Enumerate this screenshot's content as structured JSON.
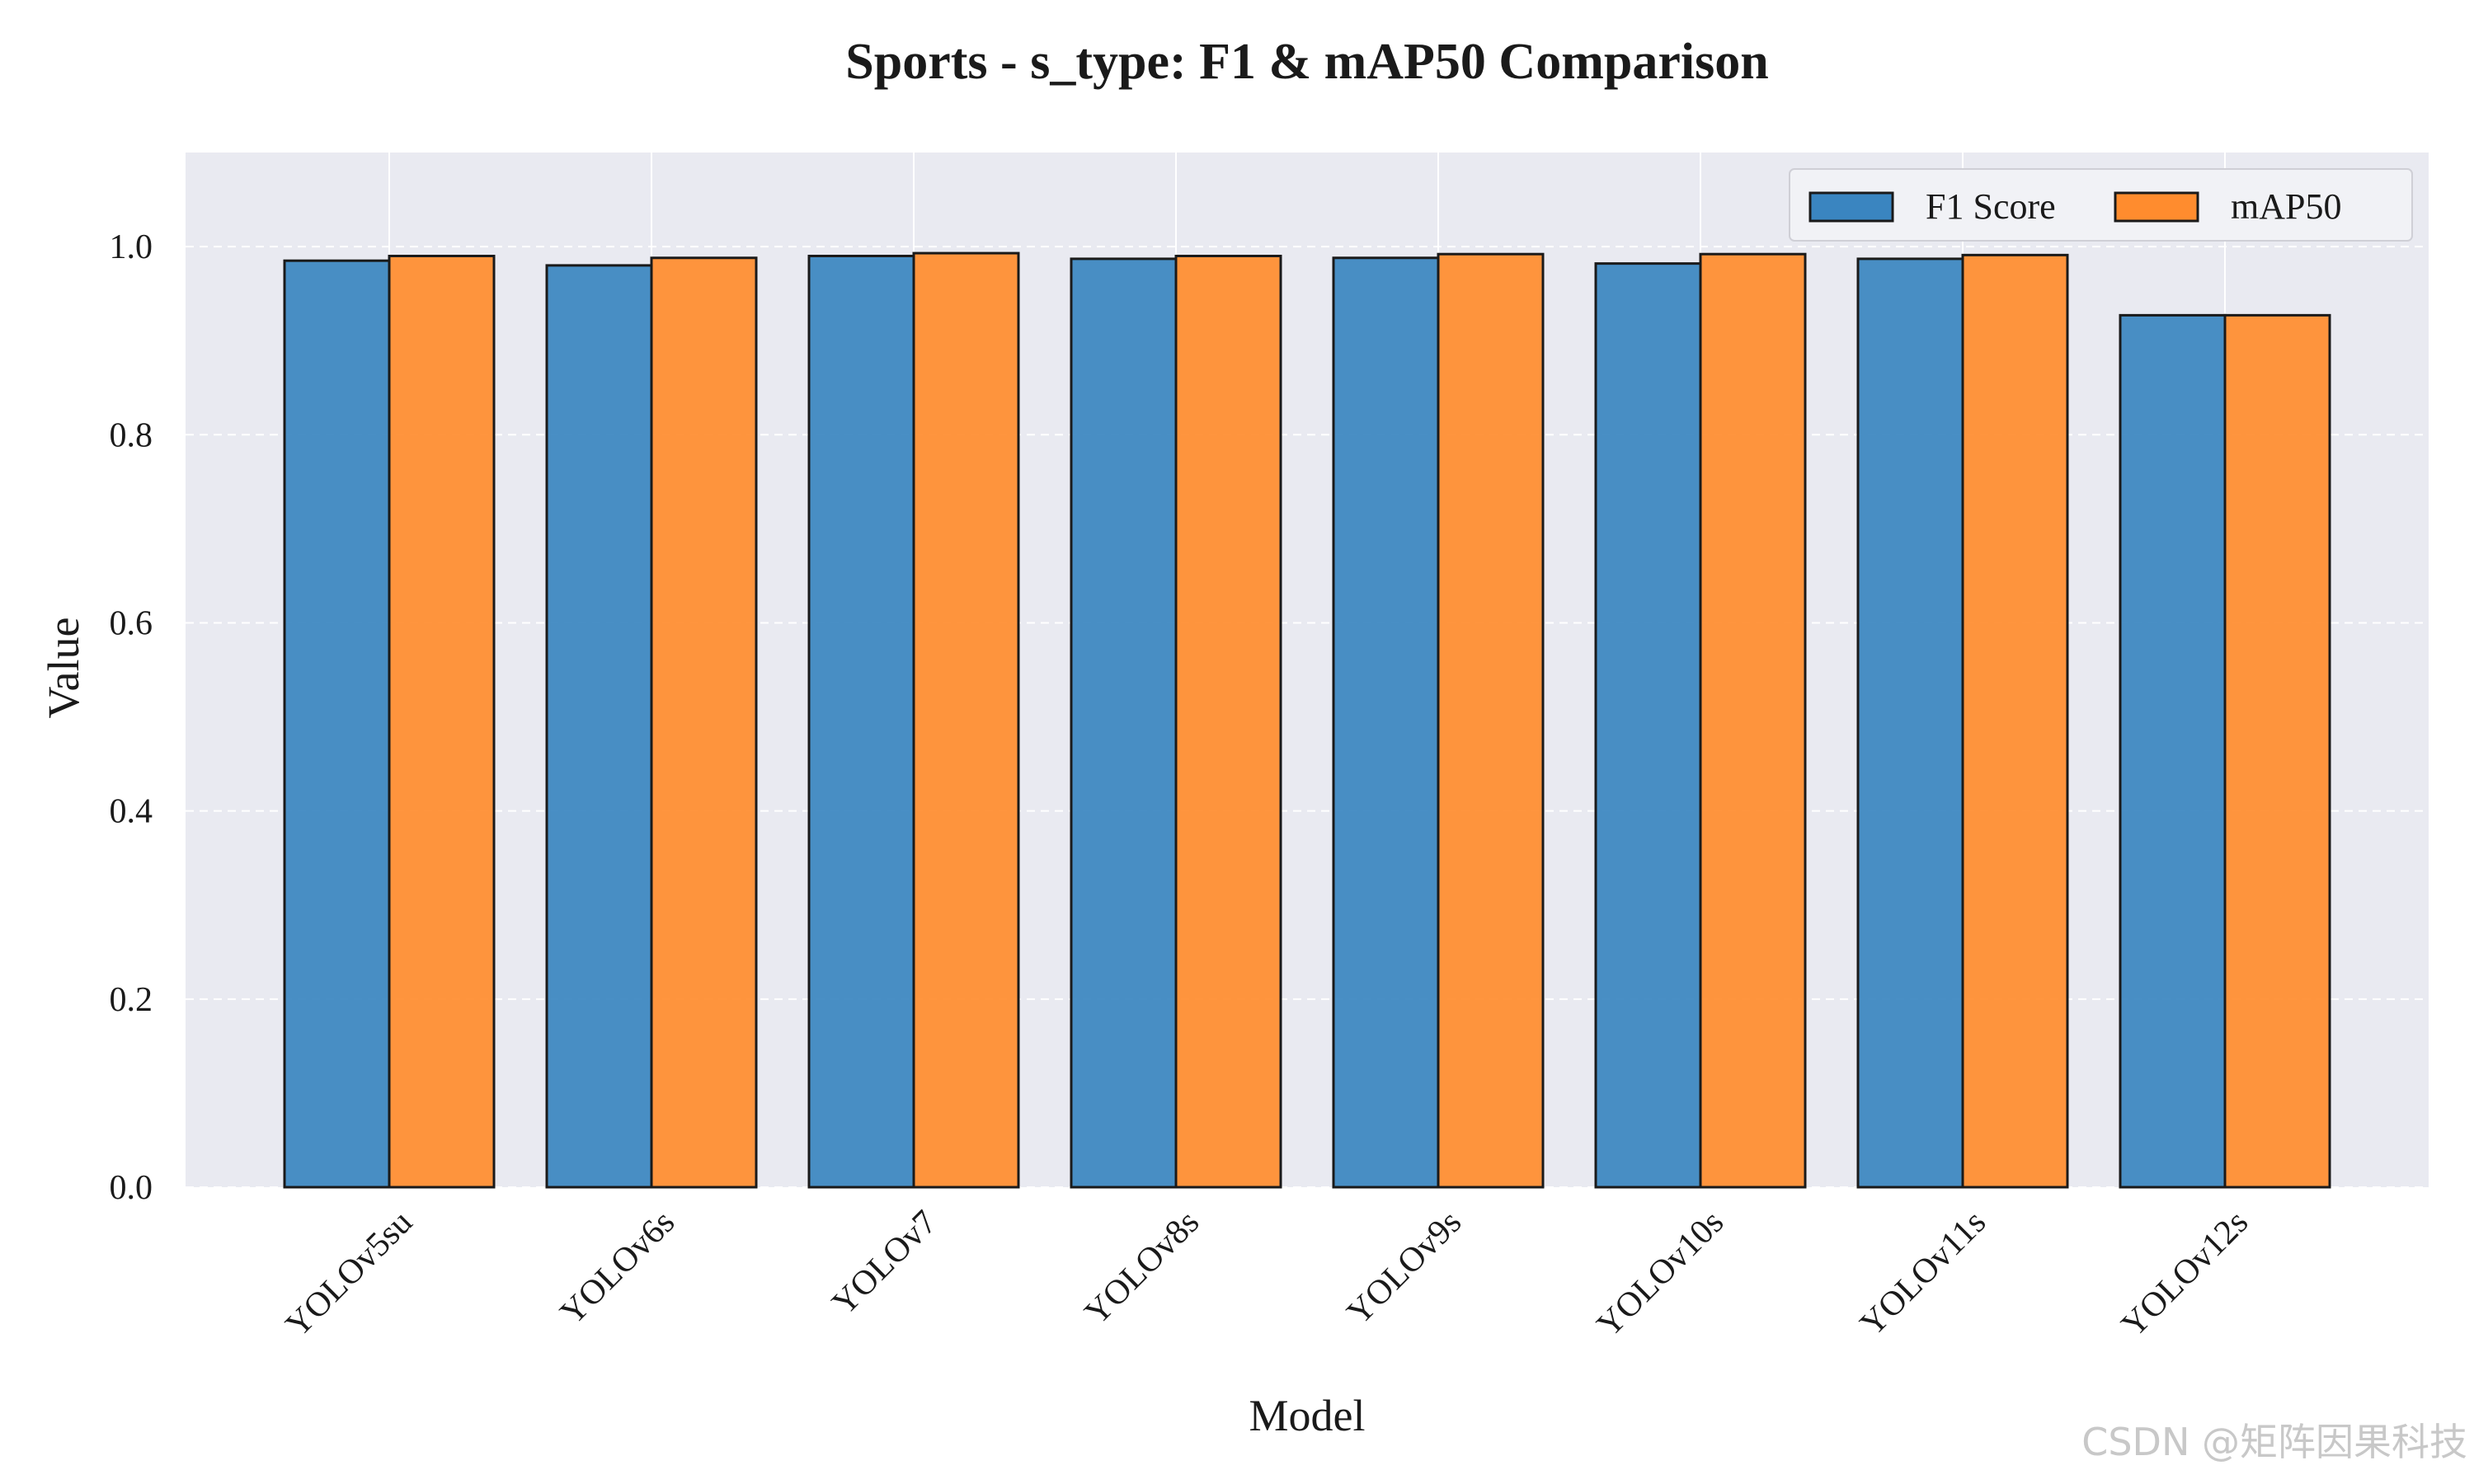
{
  "chart_data": {
    "type": "bar",
    "title": "Sports - s_type: F1 & mAP50 Comparison",
    "xlabel": "Model",
    "ylabel": "Value",
    "ylim": [
      0,
      1.1
    ],
    "yticks": [
      "0.0",
      "0.2",
      "0.4",
      "0.6",
      "0.8",
      "1.0"
    ],
    "grid": true,
    "legend_position": "top-right",
    "categories": [
      "YOLOv5su",
      "YOLOv6s",
      "YOLOv7",
      "YOLOv8s",
      "YOLOv9s",
      "YOLOv10s",
      "YOLOv11s",
      "YOLOv12s"
    ],
    "series": [
      {
        "name": "F1 Score",
        "color": "#3a85c0",
        "values": [
          0.985,
          0.98,
          0.99,
          0.987,
          0.988,
          0.982,
          0.987,
          0.927
        ]
      },
      {
        "name": "mAP50",
        "color": "#ff8c2e",
        "values": [
          0.99,
          0.988,
          0.993,
          0.99,
          0.992,
          0.992,
          0.991,
          0.927
        ]
      }
    ],
    "background_color": "#e9eaf1"
  },
  "watermark": "CSDN @矩阵因果科技"
}
